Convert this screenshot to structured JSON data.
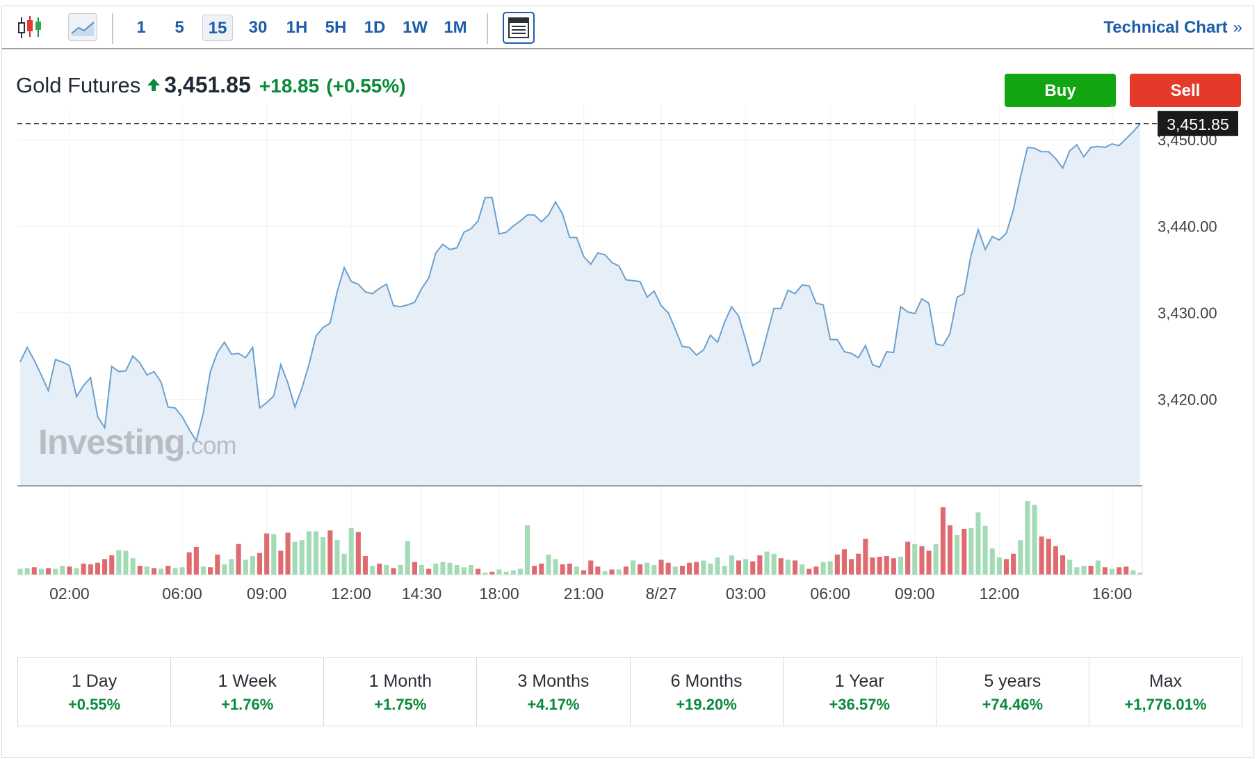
{
  "toolbar": {
    "timeframes": [
      "1",
      "5",
      "15",
      "30",
      "1H",
      "5H",
      "1D",
      "1W",
      "1M"
    ],
    "active_timeframe": "15",
    "technical_chart_label": "Technical Chart",
    "technical_chart_chevron": "»",
    "icons": {
      "candle": "candlestick-chart-icon",
      "area": "area-chart-icon",
      "layout": "layout-icon"
    }
  },
  "quote": {
    "name": "Gold Futures",
    "price": "3,451.85",
    "change": "+18.85",
    "change_pct": "(+0.55%)",
    "direction_icon": "arrow-up-icon"
  },
  "actions": {
    "buy_label": "Buy",
    "sell_label": "Sell"
  },
  "watermark": {
    "brand": "Investing",
    "suffix": ".com"
  },
  "colors": {
    "brand_blue": "#1d5dab",
    "up_green": "#0a8a3a",
    "buy_green": "#12a512",
    "sell_red": "#e53a29",
    "line": "#6aa0cf",
    "area_fill": "#e6eef8",
    "vol_up": "#a4dbb7",
    "vol_down": "#df6b70"
  },
  "chart_data": {
    "type": "area",
    "ylim": [
      3410,
      3454
    ],
    "y_ticks": [
      3420,
      3430,
      3440,
      3450
    ],
    "y_tick_labels": [
      "3,420.00",
      "3,430.00",
      "3,440.00",
      "3,450.00"
    ],
    "x_tick_labels": [
      "02:00",
      "06:00",
      "09:00",
      "12:00",
      "14:30",
      "18:00",
      "21:00",
      "8/27",
      "03:00",
      "06:00",
      "09:00",
      "12:00",
      "16:00"
    ],
    "x_tick_index": [
      7,
      23,
      35,
      47,
      57,
      68,
      80,
      91,
      103,
      115,
      127,
      139,
      155
    ],
    "last_price": 3451.85,
    "last_price_label": "3,451.85",
    "grid": true,
    "price": [
      3424.3,
      3426.0,
      3424.5,
      3422.8,
      3421.0,
      3424.6,
      3424.3,
      3423.9,
      3420.3,
      3421.6,
      3422.5,
      3418.0,
      3416.7,
      3423.8,
      3423.2,
      3423.3,
      3425.0,
      3424.2,
      3422.8,
      3423.2,
      3422.0,
      3419.1,
      3419.0,
      3418.0,
      3416.5,
      3415.2,
      3418.4,
      3423.2,
      3425.4,
      3426.6,
      3425.2,
      3425.3,
      3424.8,
      3426.0,
      3419.0,
      3419.6,
      3420.4,
      3424.0,
      3421.9,
      3419.1,
      3421.3,
      3424.0,
      3427.3,
      3428.3,
      3428.8,
      3432.4,
      3435.2,
      3433.6,
      3433.3,
      3432.4,
      3432.2,
      3432.8,
      3433.3,
      3430.8,
      3430.7,
      3430.9,
      3431.2,
      3432.8,
      3434.0,
      3436.9,
      3437.9,
      3437.3,
      3437.5,
      3439.3,
      3439.7,
      3440.6,
      3443.3,
      3443.3,
      3439.1,
      3439.3,
      3440.0,
      3440.6,
      3441.3,
      3441.3,
      3440.5,
      3441.3,
      3442.8,
      3441.4,
      3438.7,
      3438.7,
      3436.5,
      3435.6,
      3436.9,
      3436.7,
      3435.8,
      3435.4,
      3433.8,
      3433.7,
      3433.6,
      3431.8,
      3432.5,
      3430.8,
      3430.0,
      3428.1,
      3426.1,
      3426.0,
      3425.1,
      3425.7,
      3427.4,
      3426.6,
      3428.9,
      3430.7,
      3429.6,
      3426.8,
      3423.9,
      3424.4,
      3427.4,
      3430.5,
      3430.5,
      3432.6,
      3432.2,
      3433.2,
      3433.1,
      3431.1,
      3430.9,
      3426.9,
      3426.9,
      3425.5,
      3425.3,
      3424.8,
      3426.2,
      3424.0,
      3423.7,
      3425.5,
      3425.4,
      3430.7,
      3430.1,
      3429.9,
      3431.6,
      3431.1,
      3426.4,
      3426.2,
      3427.6,
      3431.8,
      3432.2,
      3436.7,
      3439.6,
      3437.3,
      3438.8,
      3438.4,
      3439.2,
      3441.9,
      3445.7,
      3449.1,
      3449.0,
      3448.6,
      3448.6,
      3447.8,
      3446.7,
      3448.7,
      3449.4,
      3448.0,
      3449.1,
      3449.2,
      3449.1,
      3449.5,
      3449.3,
      3450.1,
      3450.9,
      3451.85
    ],
    "volume": [
      8,
      9,
      10,
      8,
      9,
      8,
      12,
      11,
      9,
      15,
      14,
      16,
      21,
      26,
      33,
      32,
      22,
      12,
      11,
      9,
      8,
      12,
      9,
      10,
      30,
      37,
      11,
      10,
      27,
      14,
      21,
      41,
      20,
      25,
      29,
      55,
      54,
      32,
      56,
      44,
      46,
      58,
      58,
      50,
      59,
      46,
      28,
      62,
      57,
      25,
      12,
      15,
      13,
      9,
      13,
      45,
      17,
      13,
      8,
      15,
      17,
      16,
      13,
      10,
      13,
      8,
      3,
      4,
      7,
      4,
      6,
      8,
      66,
      12,
      15,
      27,
      21,
      14,
      15,
      11,
      6,
      19,
      11,
      5,
      7,
      7,
      11,
      19,
      14,
      16,
      13,
      20,
      16,
      11,
      12,
      16,
      17,
      19,
      15,
      23,
      12,
      26,
      19,
      21,
      18,
      26,
      31,
      28,
      22,
      20,
      19,
      14,
      8,
      11,
      17,
      18,
      27,
      34,
      21,
      28,
      48,
      23,
      24,
      25,
      22,
      24,
      44,
      41,
      38,
      32,
      41,
      90,
      66,
      53,
      61,
      62,
      83,
      65,
      35,
      23,
      21,
      28,
      46,
      98,
      93,
      51,
      48,
      38,
      26,
      20,
      10,
      12,
      12,
      19,
      10,
      8,
      10,
      11,
      6,
      3
    ],
    "volume_dir": [
      1,
      1,
      0,
      1,
      0,
      1,
      1,
      0,
      1,
      0,
      0,
      0,
      0,
      0,
      1,
      1,
      1,
      0,
      1,
      0,
      1,
      0,
      1,
      1,
      0,
      0,
      1,
      0,
      0,
      1,
      1,
      0,
      1,
      1,
      0,
      0,
      1,
      0,
      0,
      1,
      1,
      1,
      1,
      1,
      0,
      1,
      1,
      1,
      0,
      0,
      1,
      0,
      1,
      0,
      1,
      1,
      0,
      1,
      0,
      1,
      1,
      1,
      1,
      1,
      1,
      0,
      1,
      0,
      1,
      1,
      1,
      1,
      1,
      0,
      0,
      1,
      1,
      0,
      0,
      1,
      0,
      0,
      0,
      1,
      0,
      1,
      0,
      1,
      0,
      1,
      1,
      0,
      0,
      1,
      0,
      0,
      0,
      1,
      1,
      1,
      1,
      1,
      0,
      1,
      0,
      0,
      1,
      1,
      0,
      1,
      0,
      1,
      0,
      0,
      1,
      1,
      0,
      0,
      0,
      0,
      0,
      0,
      0,
      0,
      0,
      1,
      0,
      1,
      0,
      0,
      1,
      0,
      0,
      1,
      0,
      1,
      1,
      1,
      1,
      1,
      0,
      0,
      1,
      1,
      1,
      0,
      0,
      0,
      0,
      1,
      1,
      1,
      0,
      1,
      0,
      1,
      0,
      0,
      1,
      1
    ]
  },
  "periods": [
    {
      "label": "1 Day",
      "value": "+0.55%"
    },
    {
      "label": "1 Week",
      "value": "+1.76%"
    },
    {
      "label": "1 Month",
      "value": "+1.75%"
    },
    {
      "label": "3 Months",
      "value": "+4.17%"
    },
    {
      "label": "6 Months",
      "value": "+19.20%"
    },
    {
      "label": "1 Year",
      "value": "+36.57%"
    },
    {
      "label": "5 years",
      "value": "+74.46%"
    },
    {
      "label": "Max",
      "value": "+1,776.01%"
    }
  ]
}
